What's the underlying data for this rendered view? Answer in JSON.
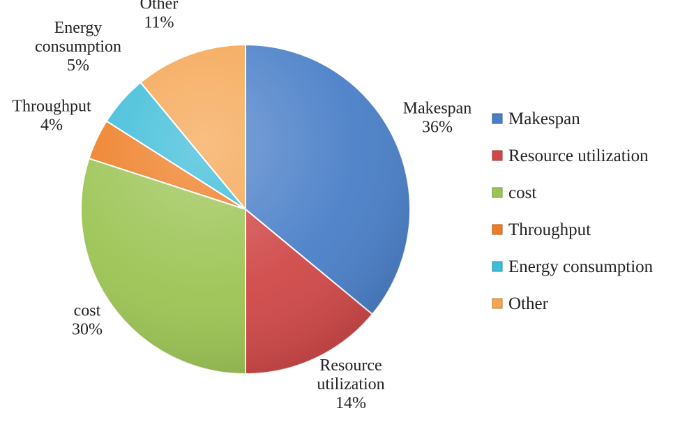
{
  "chart_data": {
    "type": "pie",
    "title": "",
    "legend_position": "right",
    "slices": [
      {
        "label": "Makespan",
        "value": 36,
        "percent_label": "36%",
        "color": "#4a7fc8",
        "label_lines": [
          "Makespan"
        ]
      },
      {
        "label": "Resource utilization",
        "value": 14,
        "percent_label": "14%",
        "color": "#d04848",
        "label_lines": [
          "Resource",
          "utilization"
        ]
      },
      {
        "label": "cost",
        "value": 30,
        "percent_label": "30%",
        "color": "#9cc454",
        "label_lines": [
          "cost"
        ]
      },
      {
        "label": "Throughput",
        "value": 4,
        "percent_label": "4%",
        "color": "#ee7d24",
        "label_lines": [
          "Throughput"
        ]
      },
      {
        "label": "Energy consumption",
        "value": 5,
        "percent_label": "5%",
        "color": "#3bbcd8",
        "label_lines": [
          "Energy",
          "consumption"
        ]
      },
      {
        "label": "Other",
        "value": 11,
        "percent_label": "11%",
        "color": "#f5a552",
        "label_lines": [
          "Other"
        ]
      }
    ]
  }
}
